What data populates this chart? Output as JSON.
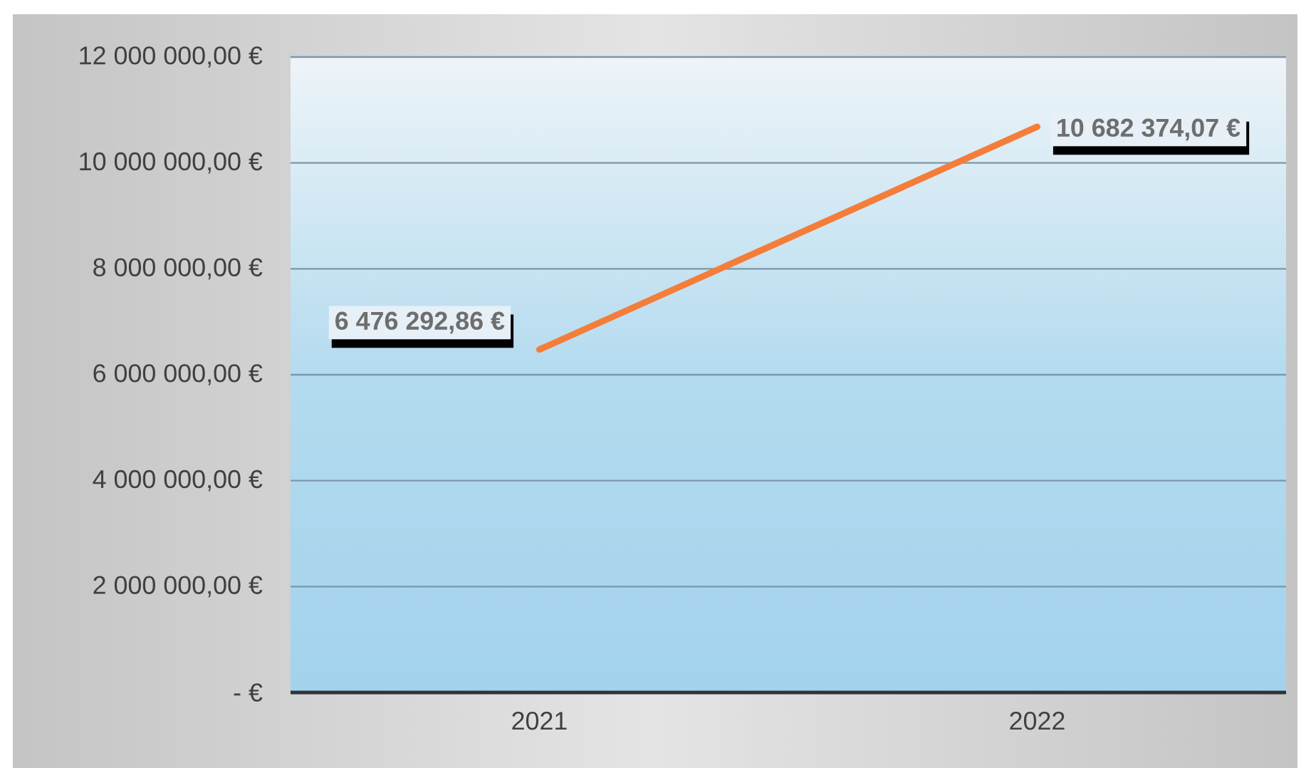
{
  "chart_data": {
    "type": "line",
    "categories": [
      "2021",
      "2022"
    ],
    "values": [
      6476292.86,
      10682374.07
    ],
    "color": "#f47d3a",
    "value_labels": [
      "6 476 292,86 €",
      "10 682 374,07 €"
    ],
    "ylim": [
      0,
      12000000
    ],
    "yticks": [
      {
        "value": 0,
        "label": "-   €"
      },
      {
        "value": 2000000,
        "label": "2 000 000,00 €"
      },
      {
        "value": 4000000,
        "label": "4 000 000,00 €"
      },
      {
        "value": 6000000,
        "label": "6 000 000,00 €"
      },
      {
        "value": 8000000,
        "label": "8 000 000,00 €"
      },
      {
        "value": 10000000,
        "label": "10 000 000,00 €"
      },
      {
        "value": 12000000,
        "label": "12 000 000,00 €"
      }
    ],
    "grid": "y"
  }
}
